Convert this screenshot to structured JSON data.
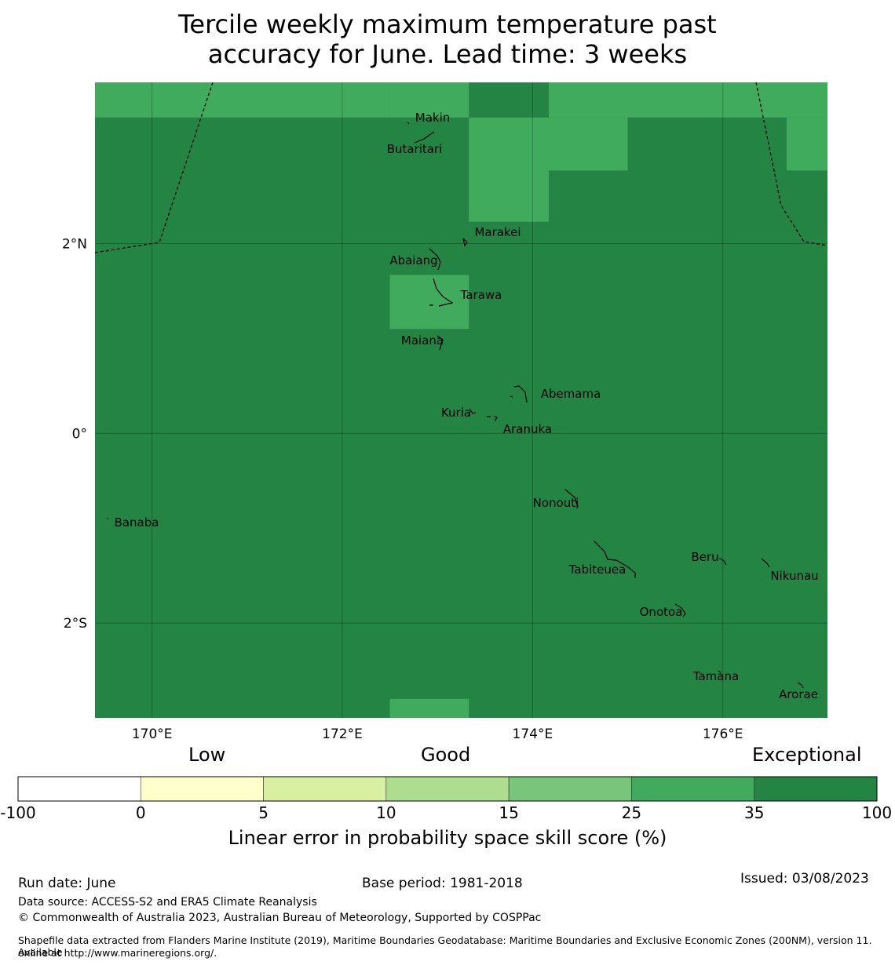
{
  "title_line1": "Tercile weekly maximum temperature past",
  "title_line2": "accuracy for June. Lead time: 3 weeks",
  "map": {
    "lon_range": [
      169.4,
      177.1
    ],
    "lat_range": [
      -3.0,
      3.7
    ],
    "x_ticks": [
      {
        "value": 170,
        "label": "170°E"
      },
      {
        "value": 172,
        "label": "172°E"
      },
      {
        "value": 174,
        "label": "174°E"
      },
      {
        "value": 176,
        "label": "176°E"
      }
    ],
    "y_ticks": [
      {
        "value": 2,
        "label": "2°N"
      },
      {
        "value": 0,
        "label": "0°"
      },
      {
        "value": -2,
        "label": "2°S"
      }
    ],
    "islands": [
      {
        "name": "Makin",
        "lon": 173.0,
        "lat": 3.35
      },
      {
        "name": "Butaritari",
        "lon": 172.8,
        "lat": 3.03
      },
      {
        "name": "Marakei",
        "lon": 173.3,
        "lat": 2.0
      },
      {
        "name": "Abaiang",
        "lon": 172.9,
        "lat": 1.85
      },
      {
        "name": "Tarawa",
        "lon": 173.0,
        "lat": 1.45
      },
      {
        "name": "Maiana",
        "lon": 173.0,
        "lat": 0.92
      },
      {
        "name": "Abemama",
        "lon": 173.9,
        "lat": 0.4
      },
      {
        "name": "Kuria",
        "lon": 173.4,
        "lat": 0.22
      },
      {
        "name": "Aranuka",
        "lon": 173.6,
        "lat": 0.17
      },
      {
        "name": "Banaba",
        "lon": 169.53,
        "lat": -0.87
      },
      {
        "name": "Nonouti",
        "lon": 174.4,
        "lat": -0.68
      },
      {
        "name": "Tabiteuea",
        "lon": 174.85,
        "lat": -1.3
      },
      {
        "name": "Beru",
        "lon": 175.98,
        "lat": -1.35
      },
      {
        "name": "Nikunau",
        "lon": 176.45,
        "lat": -1.36
      },
      {
        "name": "Onotoa",
        "lon": 175.55,
        "lat": -1.83
      },
      {
        "name": "Tamana",
        "lon": 175.98,
        "lat": -2.5
      },
      {
        "name": "Arorae",
        "lon": 176.82,
        "lat": -2.64
      }
    ],
    "grid_cells_level_25_35": [
      {
        "lon": [
          169.4,
          172.5
        ],
        "lat": [
          3.33,
          3.7
        ]
      },
      {
        "lon": [
          172.5,
          173.33
        ],
        "lat": [
          3.33,
          3.7
        ]
      },
      {
        "lon": [
          174.17,
          177.1
        ],
        "lat": [
          3.33,
          3.7
        ]
      },
      {
        "lon": [
          173.33,
          174.17
        ],
        "lat": [
          2.23,
          3.33
        ]
      },
      {
        "lon": [
          174.17,
          175.0
        ],
        "lat": [
          2.77,
          3.33
        ]
      },
      {
        "lon": [
          176.67,
          177.1
        ],
        "lat": [
          2.77,
          3.33
        ]
      },
      {
        "lon": [
          172.5,
          173.33
        ],
        "lat": [
          1.1,
          1.67
        ]
      },
      {
        "lon": [
          172.5,
          173.33
        ],
        "lat": [
          -3.0,
          -2.8
        ]
      }
    ],
    "background_level": "35-100"
  },
  "colorbar": {
    "qualitative": [
      "Low",
      "Good",
      "Exceptional"
    ],
    "tick_labels": [
      "-100",
      "0",
      "5",
      "10",
      "15",
      "25",
      "35",
      "100"
    ],
    "colors": [
      "#ffffff",
      "#ffffcc",
      "#d9f0a3",
      "#addd8e",
      "#78c679",
      "#41ab5d",
      "#238443"
    ],
    "label": "Linear error in probability space skill score (%)"
  },
  "footer": {
    "run_date": "Run date: June",
    "base_period": "Base period: 1981-2018",
    "issued": "Issued: 03/08/2023",
    "data_source": "Data source: ACCESS-S2 and ERA5 Climate Reanalysis",
    "copyright": "© Commonwealth of Australia 2023, Australian Bureau of Meteorology, Supported by COSPPac",
    "shapefile_line1": "Shapefile data extracted from Flanders Marine Institute (2019), Maritime Boundaries Geodatabase: Maritime Boundaries and Exclusive Economic Zones (200NM), version 11. Available",
    "shapefile_line2": "online at http://www.marineregions.org/."
  }
}
